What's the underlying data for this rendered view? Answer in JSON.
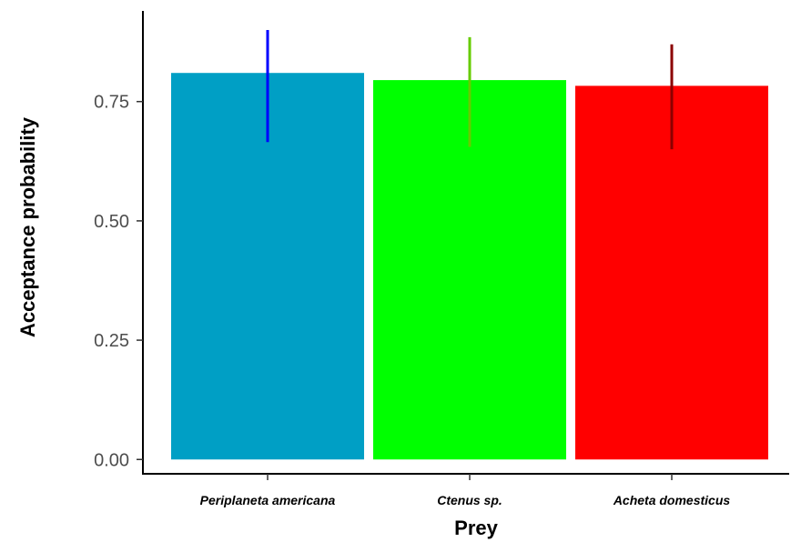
{
  "chart_data": {
    "type": "bar",
    "title": "",
    "xlabel": "Prey",
    "ylabel": "Acceptance probability",
    "categories": [
      "Periplaneta americana",
      "Ctenus sp.",
      "Acheta domesticus"
    ],
    "values": [
      0.81,
      0.795,
      0.783
    ],
    "error_bars": [
      {
        "low": 0.665,
        "high": 0.9
      },
      {
        "low": 0.655,
        "high": 0.885
      },
      {
        "low": 0.65,
        "high": 0.87
      }
    ],
    "bar_colors": [
      "#009fc5",
      "#00ff00",
      "#ff0000"
    ],
    "error_colors": [
      "#0000ff",
      "#66cc00",
      "#8b0000"
    ],
    "yticks": [
      "0.00",
      "0.25",
      "0.50",
      "0.75"
    ],
    "ylim": [
      -0.03,
      0.94
    ],
    "grid": false,
    "legend": "none"
  }
}
